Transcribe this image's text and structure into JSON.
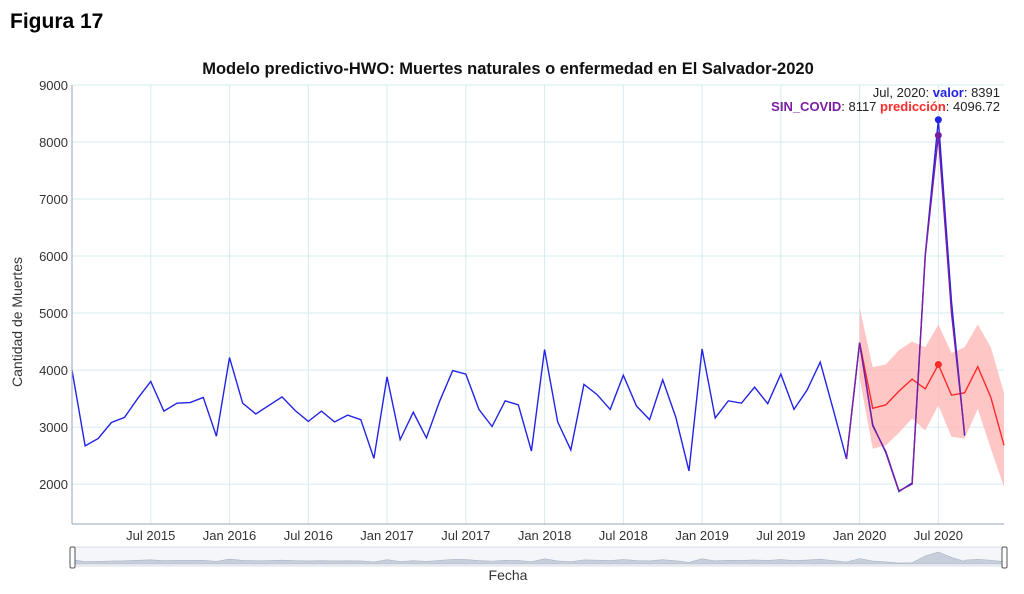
{
  "figure_label": "Figura 17",
  "colors": {
    "valor": "#2323e6",
    "sin_covid": "#7a1fa2",
    "prediccion": "#ff2a2a",
    "band": "#ffb3b3",
    "grid": "#d6ebf2"
  },
  "tooltip": {
    "date": "Jul, 2020: ",
    "valor_label": "valor",
    "valor_value": ": 8391",
    "sin_label": "SIN_COVID",
    "sin_value": ": 8117 ",
    "pred_label": "predicción",
    "pred_value": ": 4096.72"
  },
  "chart_data": {
    "type": "line",
    "title": "Modelo predictivo-HWO: Muertes naturales o enfermedad en El Salvador-2020",
    "xlabel": "Fecha",
    "ylabel": "Cantidad de Muertes",
    "ylim": [
      1300,
      9000
    ],
    "yticks": [
      2000,
      3000,
      4000,
      5000,
      6000,
      7000,
      8000,
      9000
    ],
    "xlim": [
      "2015-01",
      "2020-12"
    ],
    "xticks": [
      {
        "label": "Jul 2015",
        "date": "2015-07"
      },
      {
        "label": "Jan 2016",
        "date": "2016-01"
      },
      {
        "label": "Jul 2016",
        "date": "2016-07"
      },
      {
        "label": "Jan 2017",
        "date": "2017-01"
      },
      {
        "label": "Jul 2017",
        "date": "2017-07"
      },
      {
        "label": "Jan 2018",
        "date": "2018-01"
      },
      {
        "label": "Jul 2018",
        "date": "2018-07"
      },
      {
        "label": "Jan 2019",
        "date": "2019-01"
      },
      {
        "label": "Jul 2019",
        "date": "2019-07"
      },
      {
        "label": "Jan 2020",
        "date": "2020-01"
      },
      {
        "label": "Jul 2020",
        "date": "2020-07"
      }
    ],
    "grid": true,
    "range_slider": true,
    "series": [
      {
        "name": "valor",
        "x": [
          "2015-01",
          "2015-02",
          "2015-03",
          "2015-04",
          "2015-05",
          "2015-06",
          "2015-07",
          "2015-08",
          "2015-09",
          "2015-10",
          "2015-11",
          "2015-12",
          "2016-01",
          "2016-02",
          "2016-03",
          "2016-04",
          "2016-05",
          "2016-06",
          "2016-07",
          "2016-08",
          "2016-09",
          "2016-10",
          "2016-11",
          "2016-12",
          "2017-01",
          "2017-02",
          "2017-03",
          "2017-04",
          "2017-05",
          "2017-06",
          "2017-07",
          "2017-08",
          "2017-09",
          "2017-10",
          "2017-11",
          "2017-12",
          "2018-01",
          "2018-02",
          "2018-03",
          "2018-04",
          "2018-05",
          "2018-06",
          "2018-07",
          "2018-08",
          "2018-09",
          "2018-10",
          "2018-11",
          "2018-12",
          "2019-01",
          "2019-02",
          "2019-03",
          "2019-04",
          "2019-05",
          "2019-06",
          "2019-07",
          "2019-08",
          "2019-09",
          "2019-10",
          "2019-11",
          "2019-12",
          "2020-01",
          "2020-02",
          "2020-03",
          "2020-04",
          "2020-05",
          "2020-06",
          "2020-07",
          "2020-08",
          "2020-09"
        ],
        "y": [
          4000,
          2670,
          2800,
          3080,
          3170,
          3500,
          3800,
          3280,
          3420,
          3430,
          3520,
          2840,
          4220,
          3420,
          3230,
          3380,
          3530,
          3290,
          3100,
          3280,
          3090,
          3210,
          3130,
          2450,
          3880,
          2780,
          3260,
          2810,
          3450,
          3990,
          3930,
          3310,
          3010,
          3460,
          3390,
          2580,
          4360,
          3090,
          2600,
          3750,
          3570,
          3310,
          3910,
          3370,
          3130,
          3830,
          3170,
          2230,
          4370,
          3160,
          3460,
          3420,
          3700,
          3410,
          3930,
          3310,
          3650,
          4140,
          3300,
          2440,
          4480,
          3040,
          2550,
          1870,
          2020,
          6020,
          8391,
          5200,
          2850
        ]
      },
      {
        "name": "SIN_COVID",
        "x": [
          "2019-12",
          "2020-01",
          "2020-02",
          "2020-03",
          "2020-04",
          "2020-05",
          "2020-06",
          "2020-07",
          "2020-08",
          "2020-09"
        ],
        "y": [
          2440,
          4480,
          3020,
          2570,
          1880,
          2000,
          6000,
          8117,
          5000,
          2880
        ]
      },
      {
        "name": "predicción",
        "x": [
          "2020-01",
          "2020-02",
          "2020-03",
          "2020-04",
          "2020-05",
          "2020-06",
          "2020-07",
          "2020-08",
          "2020-09",
          "2020-10",
          "2020-11",
          "2020-12"
        ],
        "y": [
          4480,
          3330,
          3390,
          3630,
          3840,
          3670,
          4096.72,
          3560,
          3600,
          4060,
          3520,
          2680
        ],
        "upper": [
          5100,
          4050,
          4100,
          4350,
          4500,
          4400,
          4800,
          4300,
          4400,
          4800,
          4400,
          3600
        ],
        "lower": [
          3860,
          2620,
          2680,
          2900,
          3150,
          2940,
          3380,
          2830,
          2800,
          3320,
          2620,
          1950
        ]
      }
    ],
    "highlight": {
      "x": "2020-07",
      "valor": 8391,
      "SIN_COVID": 8117,
      "predicción": 4096.72
    }
  }
}
